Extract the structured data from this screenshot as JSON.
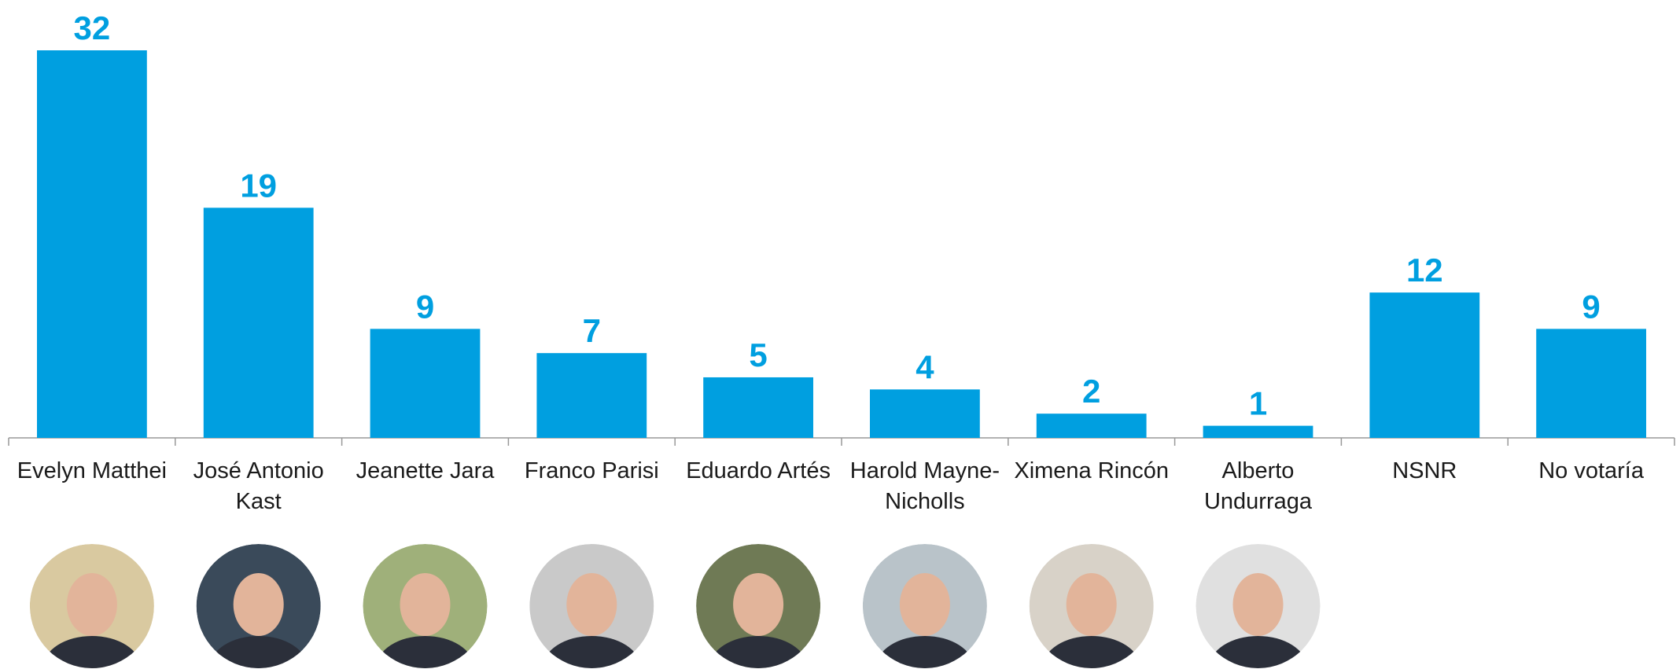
{
  "chart_data": {
    "type": "bar",
    "categories": [
      "Evelyn Matthei",
      "José Antonio Kast",
      "Jeanette Jara",
      "Franco Parisi",
      "Eduardo Artés",
      "Harold Mayne-Nicholls",
      "Ximena Rincón",
      "Alberto Undurraga",
      "NSNR",
      "No votaría"
    ],
    "values": [
      32,
      19,
      9,
      7,
      5,
      4,
      2,
      1,
      12,
      9
    ],
    "color": "#009fe0"
  }
}
